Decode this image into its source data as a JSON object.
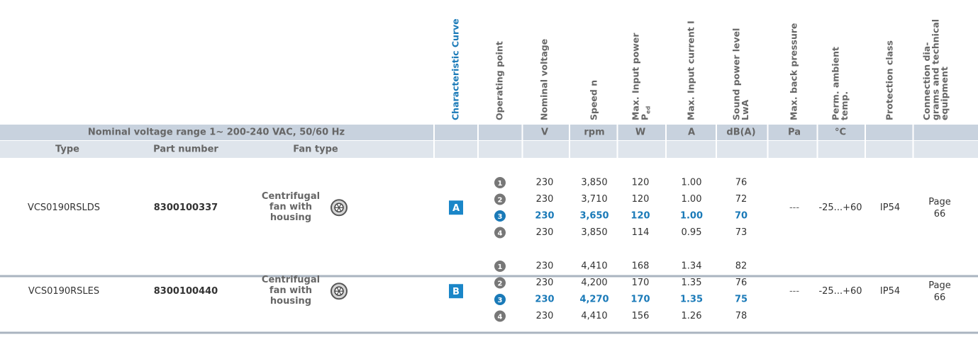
{
  "columns": [
    {
      "lines": [
        "Characteristic Curve"
      ]
    },
    {
      "lines": [
        "Operating point"
      ]
    },
    {
      "lines": [
        "Nominal voltage"
      ]
    },
    {
      "lines": [
        "Speed n"
      ]
    },
    {
      "lines": [
        "Max. Input power"
      ],
      "symbol": "P",
      "subscript": "ed"
    },
    {
      "lines": [
        "Max. Input current I"
      ]
    },
    {
      "lines": [
        "Sound power level",
        "LwA"
      ]
    },
    {
      "lines": [
        "Max. back pressure"
      ]
    },
    {
      "lines": [
        "Perm. ambient",
        "temp."
      ]
    },
    {
      "lines": [
        "Protection class"
      ]
    },
    {
      "lines": [
        "Connection dia-",
        "grams and technical",
        "equipment"
      ]
    }
  ],
  "group_header": "Nominal voltage range 1~ 200-240 VAC, 50/60 Hz",
  "units": [
    null,
    null,
    "V",
    "rpm",
    "W",
    "A",
    "dB(A)",
    "Pa",
    "°C",
    null,
    null
  ],
  "subheaders": [
    "Type",
    "Part number",
    "Fan type"
  ],
  "rows": [
    {
      "type": "VCS0190RSLDS",
      "part_number": "8300100337",
      "fan_type": [
        "Centrifugal",
        "fan with",
        "housing"
      ],
      "curve": "A",
      "points": [
        {
          "point": 1,
          "voltage": 230,
          "speed": "3,850",
          "power": 120,
          "current": "1.00",
          "sound": 76
        },
        {
          "point": 2,
          "voltage": 230,
          "speed": "3,710",
          "power": 120,
          "current": "1.00",
          "sound": 72
        },
        {
          "point": 3,
          "voltage": 230,
          "speed": "3,650",
          "power": 120,
          "current": "1.00",
          "sound": 70
        },
        {
          "point": 4,
          "voltage": 230,
          "speed": "3,850",
          "power": 114,
          "current": "0.95",
          "sound": 73
        }
      ],
      "back_pressure": "---",
      "ambient_temp": "-25...+60",
      "protection": "IP54",
      "connection": [
        "Page",
        "66"
      ]
    },
    {
      "type": "VCS0190RSLES",
      "part_number": "8300100440",
      "fan_type": [
        "Centrifugal",
        "fan with",
        "housing"
      ],
      "curve": "B",
      "points": [
        {
          "point": 1,
          "voltage": 230,
          "speed": "4,410",
          "power": 168,
          "current": "1.34",
          "sound": 82
        },
        {
          "point": 2,
          "voltage": 230,
          "speed": "4,200",
          "power": 170,
          "current": "1.35",
          "sound": 76
        },
        {
          "point": 3,
          "voltage": 230,
          "speed": "4,270",
          "power": 170,
          "current": "1.35",
          "sound": 75
        },
        {
          "point": 4,
          "voltage": 230,
          "speed": "4,410",
          "power": 156,
          "current": "1.26",
          "sound": 78
        }
      ],
      "back_pressure": "---",
      "ambient_temp": "-25...+60",
      "protection": "IP54",
      "connection": [
        "Page",
        "66"
      ]
    }
  ]
}
